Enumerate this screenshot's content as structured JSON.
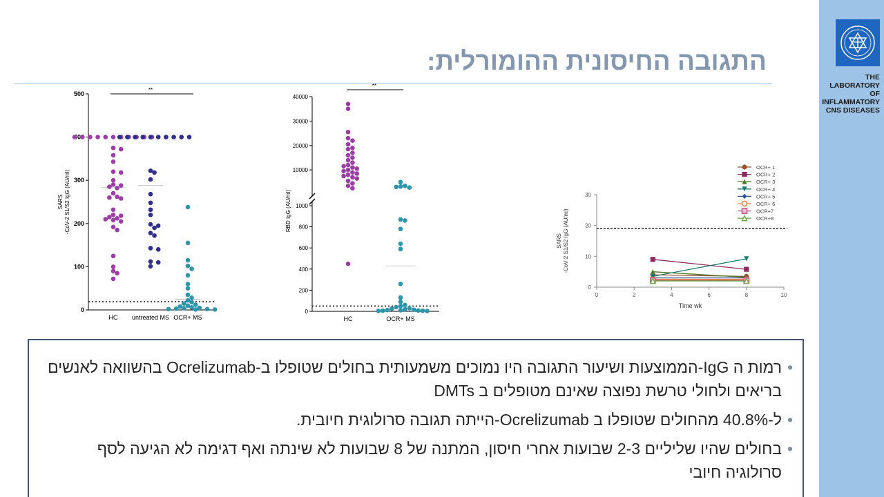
{
  "slide": {
    "title": "התגובה החיסונית ההומורלית:",
    "lab_lines": [
      "THE LABORATORY",
      "OF INFLAMMATORY",
      "CNS DISEASES"
    ],
    "bullets": [
      "רמות ה IgG-הממוצעות ושיעור התגובה היו נמוכים משמעותית בחולים שטופלו ב-Ocrelizumab בהשוואה לאנשים בריאים ולחולי טרשת נפוצה שאינם מטופלים ב DMTs",
      "ל-40.8% מהחולים שטופלו ב Ocrelizumab-הייתה תגובה סרולוגית חיובית.",
      "בחולים שהיו שליליים 2-3 שבועות אחרי חיסון, המתנה של 8 שבועות לא שינתה ואף דגימה לא הגיעה לסף סרולוגיה חיובי"
    ]
  },
  "colors": {
    "hc": "#9b3fa6",
    "untreated": "#2e2e8c",
    "ocr": "#2e96aa",
    "sidebar": "#9dc3e6",
    "title": "#8497b0"
  },
  "chart_data": [
    {
      "type": "scatter",
      "ylabel_lines": [
        "SARS",
        "-CoV-2 S1/S2 IgG (AU/ml)"
      ],
      "categories": [
        "HC",
        "untreated MS",
        "OCR+ MS"
      ],
      "yticks": [
        "0",
        "100",
        "200",
        "300",
        "400",
        "500"
      ],
      "ylim": [
        0,
        500
      ],
      "threshold": 19,
      "significance": "**",
      "means": [
        283,
        288,
        25
      ],
      "series": [
        {
          "values": [
            400,
            400,
            400,
            400,
            400,
            400,
            400,
            400,
            400,
            400,
            400,
            375,
            372,
            358,
            343,
            320,
            318,
            300,
            290,
            288,
            285,
            282,
            270,
            262,
            260,
            258,
            232,
            220,
            218,
            215,
            212,
            210,
            208,
            205,
            192,
            185,
            125,
            100,
            90,
            85,
            72
          ]
        },
        {
          "values": [
            400,
            400,
            400,
            400,
            400,
            400,
            400,
            400,
            400,
            400,
            322,
            318,
            302,
            268,
            248,
            232,
            220,
            198,
            195,
            190,
            178,
            172,
            143,
            140,
            112,
            110,
            101
          ]
        },
        {
          "values": [
            238,
            155,
            115,
            102,
            95,
            80,
            60,
            50,
            35,
            28,
            22,
            18,
            15,
            12,
            10,
            8,
            6,
            5,
            4,
            3,
            2,
            2,
            1,
            1
          ]
        }
      ]
    },
    {
      "type": "scatter",
      "ylabel": "RBD IgG (AU/ml)",
      "categories": [
        "HC",
        "OCR+ MS"
      ],
      "yticks_upper": [
        "10000",
        "20000",
        "30000",
        "40000"
      ],
      "yticks_lower": [
        "0",
        "200",
        "400",
        "600",
        "800",
        "1000"
      ],
      "ylim_upper": [
        1000,
        40000
      ],
      "ylim_lower": [
        0,
        1000
      ],
      "threshold": 50,
      "significance": "**",
      "means": [
        null,
        430
      ],
      "series": [
        {
          "values": [
            37000,
            35000,
            25500,
            23000,
            22000,
            20500,
            19000,
            18500,
            17000,
            16000,
            15000,
            14000,
            13000,
            12000,
            11500,
            11000,
            10500,
            10000,
            9500,
            9000,
            8500,
            8000,
            7500,
            7000,
            6500,
            5500,
            4500,
            3500,
            2500,
            450
          ]
        },
        {
          "values": [
            5000,
            3500,
            3200,
            3000,
            2800,
            870,
            860,
            780,
            640,
            590,
            260,
            130,
            90,
            60,
            50,
            40,
            30,
            25,
            20,
            15,
            12,
            10,
            8,
            6,
            5,
            4,
            3
          ]
        }
      ]
    },
    {
      "type": "line",
      "ylabel_lines": [
        "SARS",
        "-CoV-2 S1/S2 IgG (AU/ml)"
      ],
      "xlabel": "Time wk",
      "xticks": [
        "0",
        "2",
        "4",
        "6",
        "8",
        "10"
      ],
      "yticks": [
        "0",
        "10",
        "20",
        "30"
      ],
      "xlim": [
        0,
        10
      ],
      "ylim": [
        0,
        30
      ],
      "threshold": 19,
      "series": [
        {
          "name": "OCR+ 1",
          "color": "#a0522d",
          "marker": "circle",
          "x": [
            3,
            8
          ],
          "y": [
            4.0,
            3.5
          ]
        },
        {
          "name": "OCR+ 2",
          "color": "#8e2a5e",
          "marker": "square",
          "x": [
            3,
            8
          ],
          "y": [
            9.0,
            5.8
          ]
        },
        {
          "name": "OCR+ 3",
          "color": "#4d7a28",
          "marker": "triangle-up",
          "x": [
            3,
            8
          ],
          "y": [
            5.0,
            3.2
          ]
        },
        {
          "name": "OCR+ 4",
          "color": "#1a7a6e",
          "marker": "triangle-down",
          "x": [
            3,
            8
          ],
          "y": [
            3.5,
            9.2
          ]
        },
        {
          "name": "OCR+ 5",
          "color": "#2f5597",
          "marker": "diamond",
          "x": [
            3,
            8
          ],
          "y": [
            3.0,
            3.0
          ]
        },
        {
          "name": "OCR+ 6",
          "color": "#ed7d31",
          "marker": "circle-open",
          "x": [
            3,
            8
          ],
          "y": [
            2.5,
            2.5
          ]
        },
        {
          "name": "OCR+7",
          "color": "#c0507a",
          "marker": "square-open",
          "x": [
            3,
            8
          ],
          "y": [
            2.2,
            2.2
          ]
        },
        {
          "name": "OCR+8",
          "color": "#70ad47",
          "marker": "triangle-open",
          "x": [
            3,
            8
          ],
          "y": [
            2.0,
            2.0
          ]
        }
      ]
    }
  ]
}
